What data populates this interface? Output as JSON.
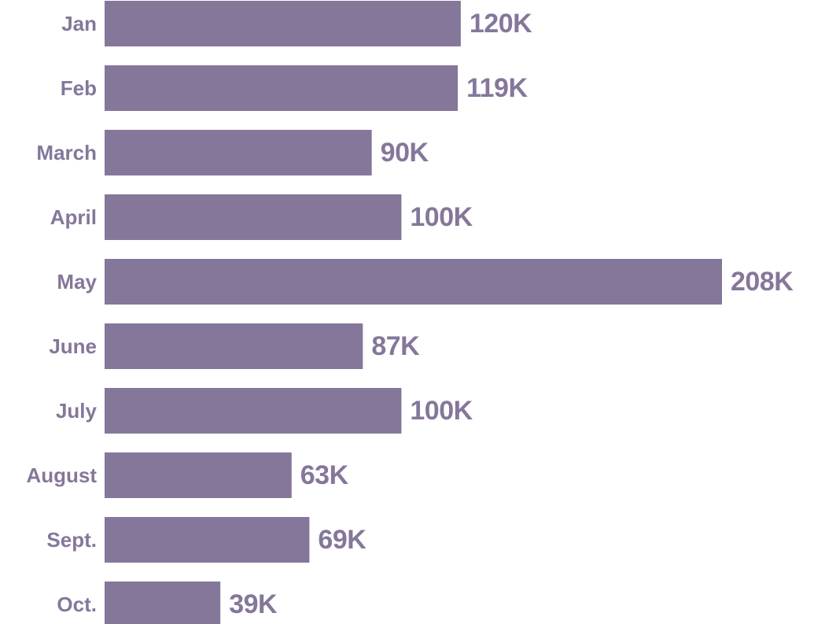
{
  "colors": {
    "bar": "#85779a",
    "category_label": "#85779a",
    "value_label": "#85779a",
    "background": "#ffffff"
  },
  "chart_data": {
    "type": "bar",
    "orientation": "horizontal",
    "categories": [
      "Jan",
      "Feb",
      "March",
      "April",
      "May",
      "June",
      "July",
      "August",
      "Sept.",
      "Oct."
    ],
    "values": [
      120000,
      119000,
      90000,
      100000,
      208000,
      87000,
      100000,
      63000,
      69000,
      39000
    ],
    "data_labels": [
      "120K",
      "119K",
      "90K",
      "100K",
      "208K",
      "87K",
      "100K",
      "63K",
      "69K",
      "39K"
    ],
    "title": "",
    "xlabel": "",
    "ylabel": "",
    "xlim": [
      0,
      208000
    ],
    "grid": false,
    "legend": "none"
  }
}
